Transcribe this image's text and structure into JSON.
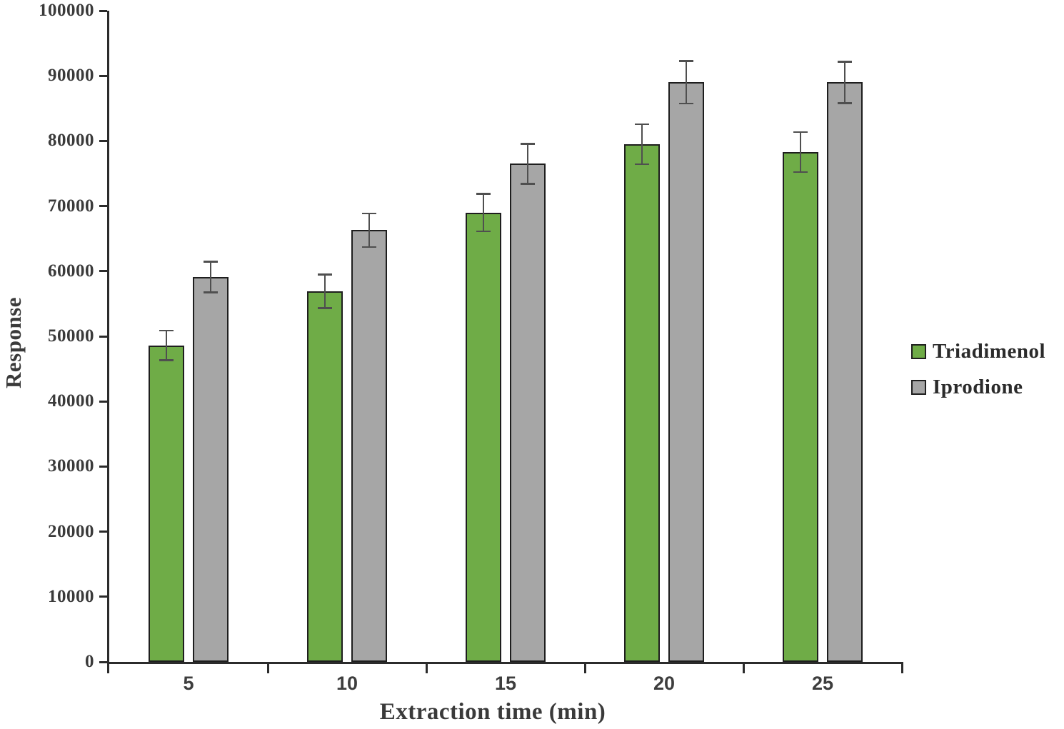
{
  "figure": {
    "background_color": "#ffffff",
    "axis_color": "#2b2b2b",
    "tick_text_color": "#3a3a3a",
    "error_bar_color": "#4f4f4f"
  },
  "chart_data": {
    "type": "bar",
    "title": "",
    "xlabel": "Extraction time (min)",
    "ylabel": "Response",
    "categories": [
      "5",
      "10",
      "15",
      "20",
      "25"
    ],
    "series": [
      {
        "name": "Triadimenol",
        "color": "#6FAC47",
        "border_color": "#1e1e1e",
        "values": [
          48600,
          56900,
          69000,
          79500,
          78300
        ],
        "errors": [
          2300,
          2600,
          2900,
          3100,
          3100
        ]
      },
      {
        "name": "Iprodione",
        "color": "#A6A6A6",
        "border_color": "#1e1e1e",
        "values": [
          59100,
          66300,
          76500,
          89000,
          89000
        ],
        "errors": [
          2400,
          2600,
          3100,
          3300,
          3200
        ]
      }
    ],
    "ylim": [
      0,
      100000
    ],
    "ytick_step": 10000,
    "ytick_labels": [
      "0",
      "10000",
      "20000",
      "30000",
      "40000",
      "50000",
      "60000",
      "70000",
      "80000",
      "90000",
      "100000"
    ],
    "grid": false,
    "error_bars": true,
    "legend_position": "right"
  }
}
